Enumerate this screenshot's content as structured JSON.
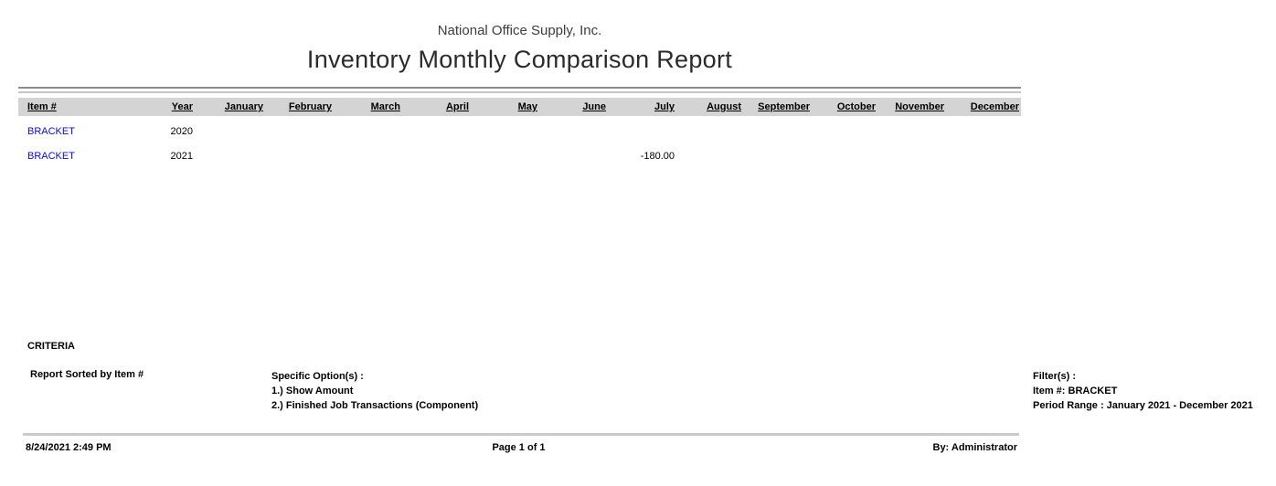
{
  "report": {
    "company": "National Office Supply, Inc.",
    "title": "Inventory Monthly Comparison Report"
  },
  "table": {
    "columns": [
      "Item #",
      "Year",
      "January",
      "February",
      "March",
      "April",
      "May",
      "June",
      "July",
      "August",
      "September",
      "October",
      "November",
      "December"
    ],
    "rows": [
      {
        "item": "BRACKET",
        "year": "2020",
        "values": [
          "",
          "",
          "",
          "",
          "",
          "",
          "",
          "",
          "",
          "",
          "",
          ""
        ]
      },
      {
        "item": "BRACKET",
        "year": "2021",
        "values": [
          "",
          "",
          "",
          "",
          "",
          "",
          "-180.00",
          "",
          "",
          "",
          "",
          ""
        ]
      }
    ],
    "link_color": "#0a0adf",
    "header_bg": "#d4d4d4"
  },
  "criteria": {
    "heading": "CRITERIA",
    "sort": "Report Sorted by Item #",
    "options_heading": "Specific Option(s) :",
    "options": [
      "1.) Show Amount",
      "2.) Finished Job Transactions (Component)"
    ],
    "filters_heading": "Filter(s) :",
    "filters": [
      "Item #: BRACKET",
      "Period Range : January 2021 - December 2021"
    ]
  },
  "footer": {
    "datetime": "8/24/2021 2:49 PM",
    "page": "Page 1 of 1",
    "by": "By: Administrator"
  }
}
